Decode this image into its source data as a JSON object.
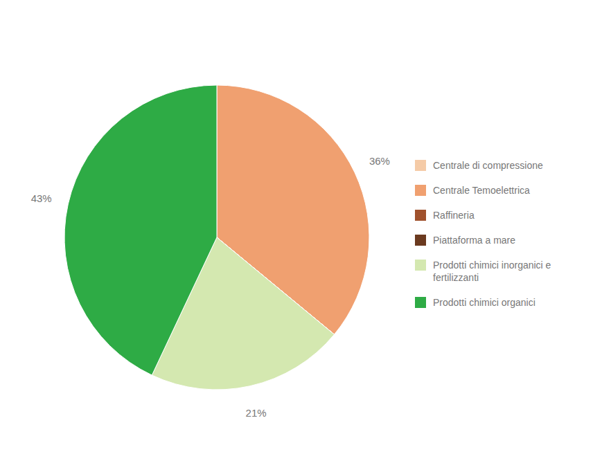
{
  "chart_data": {
    "type": "pie",
    "categories": [
      "Centrale di compressione",
      "Centrale Temoelettrica",
      "Raffineria",
      "Piattaforma a mare",
      "Prodotti chimici inorganici e\n  fertilizzanti",
      "Prodotti chimici organici"
    ],
    "values": [
      0.001,
      36,
      0.001,
      0.001,
      21,
      43
    ],
    "value_labels": [
      null,
      "36%",
      null,
      null,
      "21%",
      "43%"
    ],
    "colors": [
      "#f5cba7",
      "#f0a070",
      "#a0522d",
      "#6b3a1f",
      "#d4e8b0",
      "#2eab45"
    ],
    "data_labels": true,
    "legend": "right"
  }
}
